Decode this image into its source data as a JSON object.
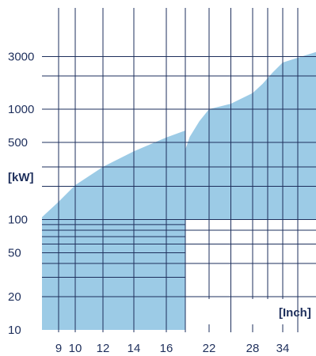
{
  "chart_data": {
    "type": "area",
    "title": "",
    "xlabel": "[Inch]",
    "ylabel": "[kW]",
    "y_scale": "log",
    "ylim": [
      10,
      4000
    ],
    "grid": true,
    "x_ticks": [
      "9",
      "10",
      "12",
      "14",
      "16",
      "22",
      "28",
      "34"
    ],
    "y_ticks": [
      "3000",
      "1000",
      "500",
      "100",
      "50",
      "20",
      "10"
    ],
    "segments": [
      {
        "name": "",
        "x": [
          8.4,
          9,
          10,
          12,
          14,
          16,
          17.1
        ],
        "upper": [
          105,
          145,
          205,
          300,
          415,
          555,
          640
        ],
        "lower": [
          10,
          10,
          10,
          10,
          10,
          10,
          10
        ]
      },
      {
        "name": "",
        "x": [
          17.1,
          18,
          20,
          22,
          25,
          28,
          30,
          32,
          34,
          36
        ],
        "upper": [
          430,
          560,
          780,
          1000,
          1120,
          1400,
          1700,
          2150,
          2650,
          3300
        ],
        "lower": [
          100,
          100,
          100,
          100,
          100,
          100,
          100,
          100,
          100,
          100
        ]
      }
    ],
    "colors": {
      "fill": "#9ccbe6",
      "grid": "#1e2f5c",
      "text": "#1e2f5c"
    }
  }
}
